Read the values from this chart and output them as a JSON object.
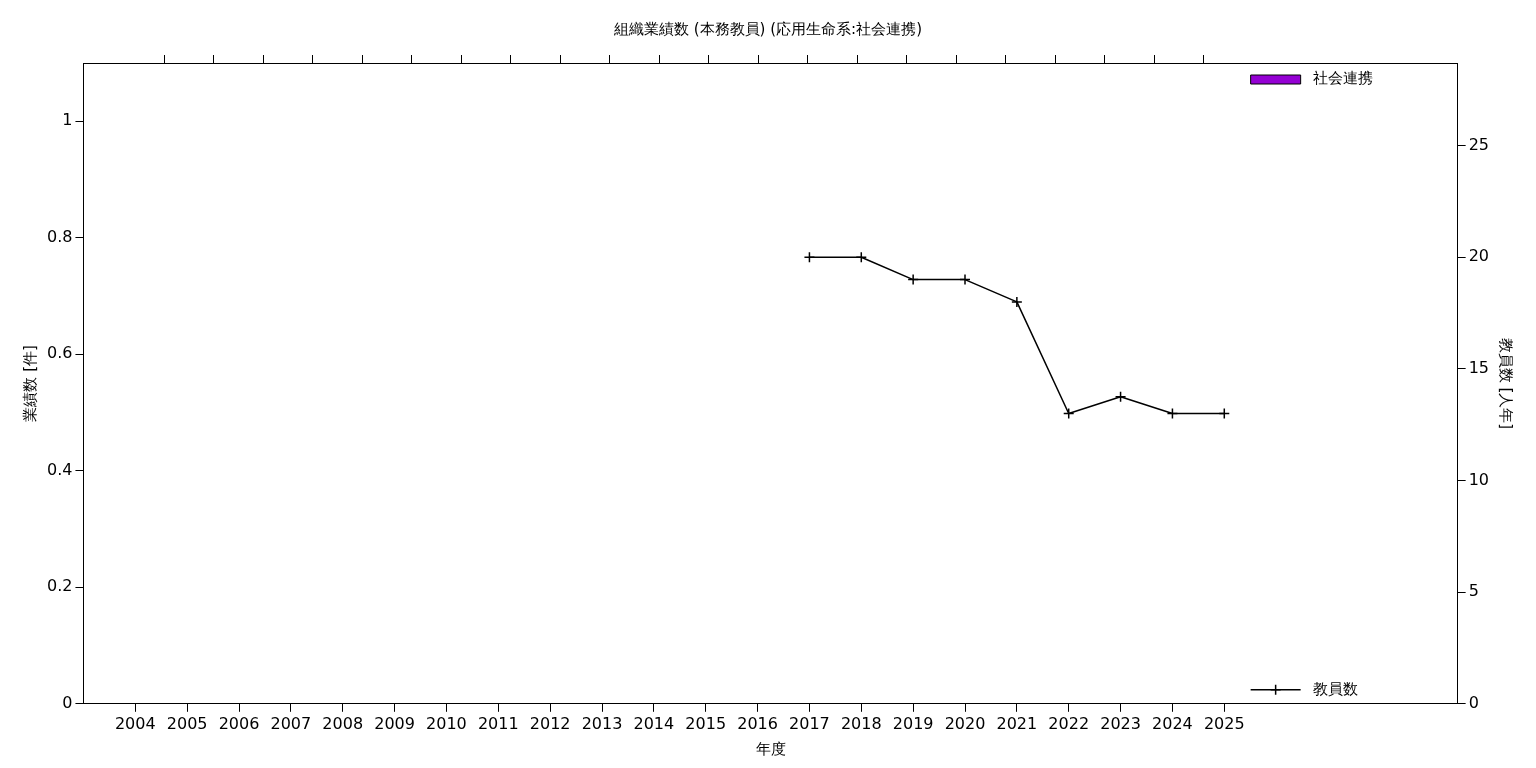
{
  "chart_data": {
    "type": "bar",
    "title": "組織業績数 (本務教員) (応用生命系:社会連携)",
    "xlabel": "年度",
    "ylabel": "業績数 [件]",
    "y2label": "教員数 [人年]",
    "x": [
      2004,
      2005,
      2006,
      2007,
      2008,
      2009,
      2010,
      2011,
      2012,
      2013,
      2014,
      2015,
      2016,
      2017,
      2018,
      2019,
      2020,
      2021,
      2022,
      2023,
      2024,
      2025
    ],
    "xlim": [
      2003,
      2029.5
    ],
    "xticks": [
      2004,
      2005,
      2006,
      2007,
      2008,
      2009,
      2010,
      2011,
      2012,
      2013,
      2014,
      2015,
      2016,
      2017,
      2018,
      2019,
      2020,
      2021,
      2022,
      2023,
      2024,
      2025
    ],
    "ylim": [
      0,
      1.1
    ],
    "yticks": [
      0,
      0.2,
      0.4,
      0.6,
      0.8,
      1
    ],
    "y2lim": [
      0,
      28.7
    ],
    "y2ticks": [
      0,
      5,
      10,
      15,
      20,
      25
    ],
    "grid": false,
    "legend": "right",
    "series": [
      {
        "name": "社会連携",
        "color": "#9400d3",
        "values": [
          0,
          0,
          0,
          0,
          0,
          0,
          0,
          0,
          0,
          0,
          0,
          0,
          0,
          0,
          0,
          0,
          0,
          0,
          0,
          0,
          0,
          0
        ]
      },
      {
        "name": "教員数",
        "type": "line",
        "axis": "y2",
        "color": "#000000",
        "marker": "cross",
        "line_style": "solid",
        "values": [
          null,
          null,
          null,
          null,
          null,
          null,
          null,
          null,
          null,
          null,
          null,
          null,
          null,
          20,
          20,
          19,
          19,
          18,
          13,
          13.75,
          13,
          13
        ]
      }
    ]
  }
}
